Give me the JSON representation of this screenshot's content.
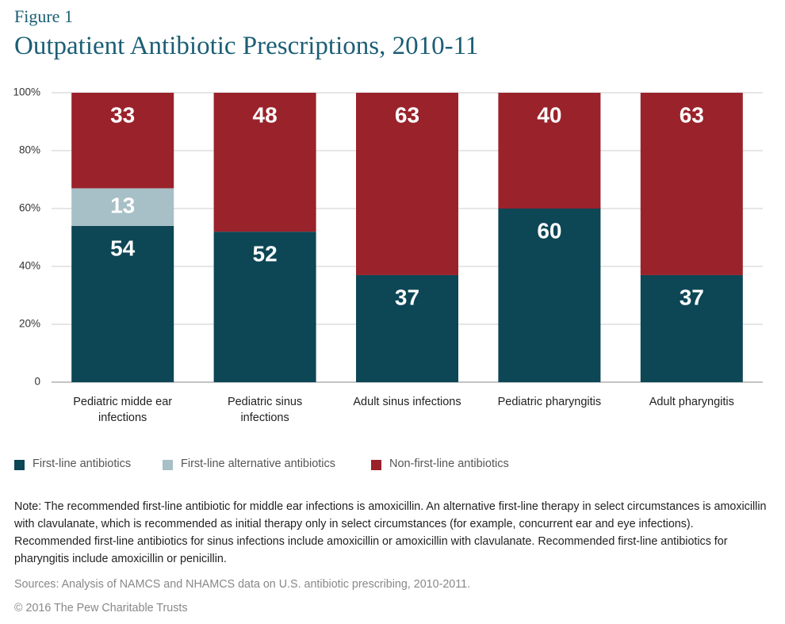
{
  "chart_data": {
    "type": "stacked_bar",
    "figure_label": "Figure 1",
    "title": "Outpatient Antibiotic Prescriptions, 2010-11",
    "categories": [
      "Pediatric midde ear infections",
      "Pediatric sinus infections",
      "Adult sinus infections",
      "Pediatric pharyngitis",
      "Adult pharyngitis"
    ],
    "series": [
      {
        "name": "First-line antibiotics",
        "color": "#0d4655",
        "values": [
          54,
          52,
          37,
          60,
          37
        ]
      },
      {
        "name": "First-line alternative antibiotics",
        "color": "#a7bfc6",
        "values": [
          13,
          null,
          null,
          null,
          null
        ]
      },
      {
        "name": "Non-first-line antibiotics",
        "color": "#9a222a",
        "values": [
          33,
          48,
          63,
          40,
          63
        ]
      }
    ],
    "ylim": [
      0,
      100
    ],
    "yticks": [
      0,
      {
        "value": 20,
        "label": "20%"
      },
      {
        "value": 40,
        "label": "40%"
      },
      {
        "value": 60,
        "label": "60%"
      },
      {
        "value": 80,
        "label": "80%"
      },
      {
        "value": 100,
        "label": "100%"
      }
    ],
    "grid": true,
    "note": "Note: The recommended first-line antibiotic for middle ear infections is amoxicillin. An alternative first-line therapy in select circumstances is amoxicillin with clavulanate, which is recommended as initial therapy only in select circumstances (for example, concurrent ear and eye infections). Recommended first-line antibiotics for sinus infections include amoxicillin or amoxicillin with clavulanate. Recommended first-line antibiotics for pharyngitis include amoxicillin or penicillin.",
    "source": "Sources: Analysis of NAMCS and NHAMCS data on U.S. antibiotic prescribing, 2010-2011.",
    "copyright": "© 2016 The Pew Charitable Trusts"
  }
}
